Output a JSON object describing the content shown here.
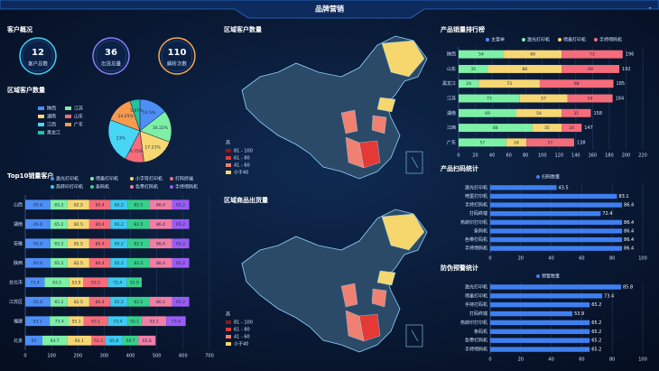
{
  "header": {
    "title": "品牌营销"
  },
  "overview": {
    "title": "客户概况",
    "stats": [
      {
        "value": 12,
        "label": "客户总数"
      },
      {
        "value": 36,
        "label": "出货总量"
      },
      {
        "value": 110,
        "label": "解析次数"
      }
    ]
  },
  "maps": [
    {
      "title": "区域客户数量",
      "legend_title": "高",
      "legend": [
        "81 - 100",
        "61 - 80",
        "41 - 60",
        "小于40"
      ]
    },
    {
      "title": "区域商品出货量",
      "legend_title": "高",
      "legend": [
        "81 - 100",
        "61 - 80",
        "41 - 60",
        "小于40"
      ]
    }
  ],
  "chart_data": [
    {
      "type": "pie",
      "title": "区域客户数量",
      "categories": [
        "陕西",
        "江苏",
        "湖南",
        "山东",
        "江西",
        "广东",
        "黑龙江"
      ],
      "values": [
        14.5,
        16.22,
        17.21,
        9.75,
        23,
        14.25,
        5.07
      ],
      "value_labels": [
        "14.5%",
        "16.22%",
        "17.21%",
        "9.75%",
        "23%",
        "14.25%",
        "5.07%"
      ],
      "colors": [
        "#4e8ef7",
        "#7ef0a6",
        "#f7d774",
        "#f56c7a",
        "#48d6f5",
        "#f79a4e",
        "#22c3a0"
      ]
    },
    {
      "type": "hbar_stacked",
      "title": "Top10销量客户",
      "categories": [
        "山西",
        "湖南",
        "安徽",
        "陕西",
        "台北市",
        "江苏区",
        "福建",
        "北京"
      ],
      "series": [
        {
          "name": "激光打印机",
          "color": "#4e8ef7",
          "values": [
            95.6,
            95.6,
            95.6,
            95.6,
            73.4,
            95.6,
            93.1,
            65
          ]
        },
        {
          "name": "喷墨打印机",
          "color": "#7ef0a6",
          "values": [
            65.2,
            65.2,
            65.2,
            65.2,
            93.5,
            65.2,
            73.4,
            93.7
          ]
        },
        {
          "name": "小字符打印机",
          "color": "#f7d774",
          "values": [
            82.5,
            82.5,
            82.5,
            82.5,
            53.9,
            82.5,
            55.1,
            93.1
          ]
        },
        {
          "name": "打码终端",
          "color": "#f56c7a",
          "values": [
            80.4,
            80.4,
            80.4,
            80.4,
            93.5,
            80.4,
            93.1,
            52.3
          ]
        },
        {
          "name": "热转印打印机",
          "color": "#3ccaf0",
          "values": [
            65.2,
            65.2,
            65.2,
            65.2,
            72.4,
            65.2,
            73.4,
            65.8
          ]
        },
        {
          "name": "条码机",
          "color": "#37d08a",
          "values": [
            82.5,
            82.5,
            82.5,
            82.5,
            55.9,
            82.5,
            55.1,
            59.7
          ]
        },
        {
          "name": "色带打码机",
          "color": "#f07fa6",
          "values": [
            86.4,
            86.4,
            86.4,
            86.4,
            null,
            86.4,
            93.1,
            65.8
          ]
        },
        {
          "name": "手持喷码机",
          "color": "#9b5cf5",
          "values": [
            65.2,
            65.2,
            65.2,
            65.2,
            null,
            65.2,
            73.4,
            null
          ]
        }
      ],
      "xlim": [
        0,
        700
      ],
      "xticks": [
        0,
        100,
        200,
        300,
        400,
        500,
        600,
        700
      ]
    },
    {
      "type": "hbar_stacked",
      "title": "产品销量排行榜",
      "categories": [
        "陕西",
        "山东",
        "黑龙江",
        "江苏",
        "湖南",
        "江西",
        "广东"
      ],
      "series": [
        {
          "name": "主菜单",
          "color": "#4e8ef7",
          "values": [
            null,
            null,
            null,
            null,
            null,
            null,
            null
          ]
        },
        {
          "name": "激光打印机",
          "color": "#7ef0a6",
          "values": [
            54,
            35,
            24,
            73,
            69,
            88,
            57
          ]
        },
        {
          "name": "喷墨打印机",
          "color": "#f7d774",
          "values": [
            69,
            88,
            73,
            57,
            54,
            35,
            24
          ]
        },
        {
          "name": "手持喷码机",
          "color": "#f56c7a",
          "values": [
            73,
            69,
            88,
            54,
            35,
            24,
            57
          ]
        }
      ],
      "totals": [
        196,
        192,
        185,
        184,
        158,
        147,
        138
      ],
      "xlim": [
        0,
        220
      ],
      "xticks": [
        0,
        20,
        40,
        60,
        80,
        100,
        120,
        140,
        160,
        180,
        200,
        220
      ]
    },
    {
      "type": "hbar",
      "title": "产品扫码统计",
      "categories": [
        "激光打印机",
        "喷墨打印机",
        "手持打码机",
        "打码终端",
        "热转印打印机",
        "条码机",
        "色带打码机",
        "手持喷码机"
      ],
      "series": [
        {
          "name": "扫码数量",
          "color": "#3f7ff0",
          "values": [
            43.5,
            83.1,
            86.4,
            72.4,
            86.4,
            86.4,
            86.4,
            86.4
          ]
        }
      ],
      "xlim": [
        0,
        100
      ],
      "xticks": [
        0,
        20,
        40,
        60,
        80,
        100
      ]
    },
    {
      "type": "hbar",
      "title": "防伪预警统计",
      "categories": [
        "激光打印机",
        "喷墨打印机",
        "手持打码机",
        "打码终端",
        "热转印打印机",
        "条码机",
        "色带打码机",
        "手持喷码机"
      ],
      "series": [
        {
          "name": "预警数量",
          "color": "#3f7ff0",
          "values": [
            85.8,
            73.4,
            65.2,
            53.9,
            65.2,
            65.2,
            65.2,
            65.2
          ]
        }
      ],
      "xlim": [
        0,
        100
      ],
      "xticks": [
        0,
        20,
        40,
        60,
        80,
        100
      ]
    }
  ]
}
